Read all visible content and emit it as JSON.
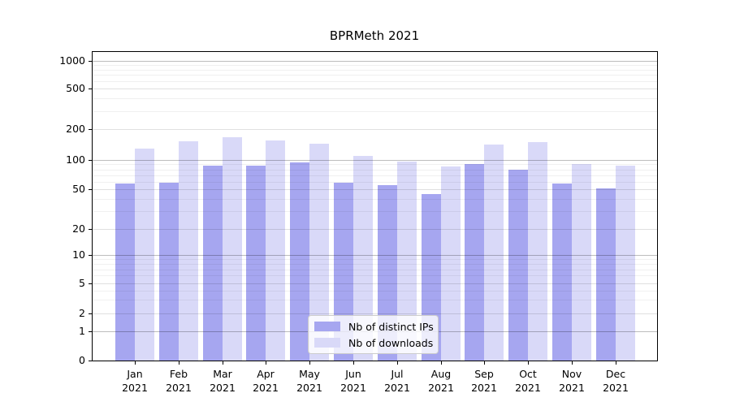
{
  "title": "BPRMeth 2021",
  "chart_data": {
    "type": "bar",
    "title": "BPRMeth 2021",
    "categories": [
      "Jan 2021",
      "Feb 2021",
      "Mar 2021",
      "Apr 2021",
      "May 2021",
      "Jun 2021",
      "Jul 2021",
      "Aug 2021",
      "Sep 2021",
      "Oct 2021",
      "Nov 2021",
      "Dec 2021"
    ],
    "series": [
      {
        "name": "Nb of distinct IPs",
        "color": "#a6a6f0",
        "values": [
          57,
          58,
          87,
          87,
          95,
          58,
          55,
          45,
          91,
          79,
          57,
          51
        ]
      },
      {
        "name": "Nb of downloads",
        "color": "#d9d9f8",
        "values": [
          128,
          153,
          166,
          156,
          143,
          110,
          97,
          85,
          141,
          150,
          91,
          87
        ]
      }
    ],
    "xlabel": "",
    "ylabel": "",
    "yscale": "symlog",
    "yticks": [
      0,
      1,
      2,
      5,
      10,
      20,
      50,
      100,
      200,
      500,
      1000
    ],
    "ylim": [
      0,
      1300
    ],
    "grid": "major+minor",
    "legend_position": "lower center"
  },
  "legend": {
    "item1": "Nb of distinct IPs",
    "item2": "Nb of downloads"
  },
  "colors": {
    "series1": "#a6a6f0",
    "series2": "#d9d9f8",
    "grid_major": "rgba(0,0,0,0.26)",
    "grid_mid": "rgba(0,0,0,0.12)",
    "grid_minor": "rgba(0,0,0,0.06)",
    "spine": "#000000",
    "background": "#ffffff"
  }
}
